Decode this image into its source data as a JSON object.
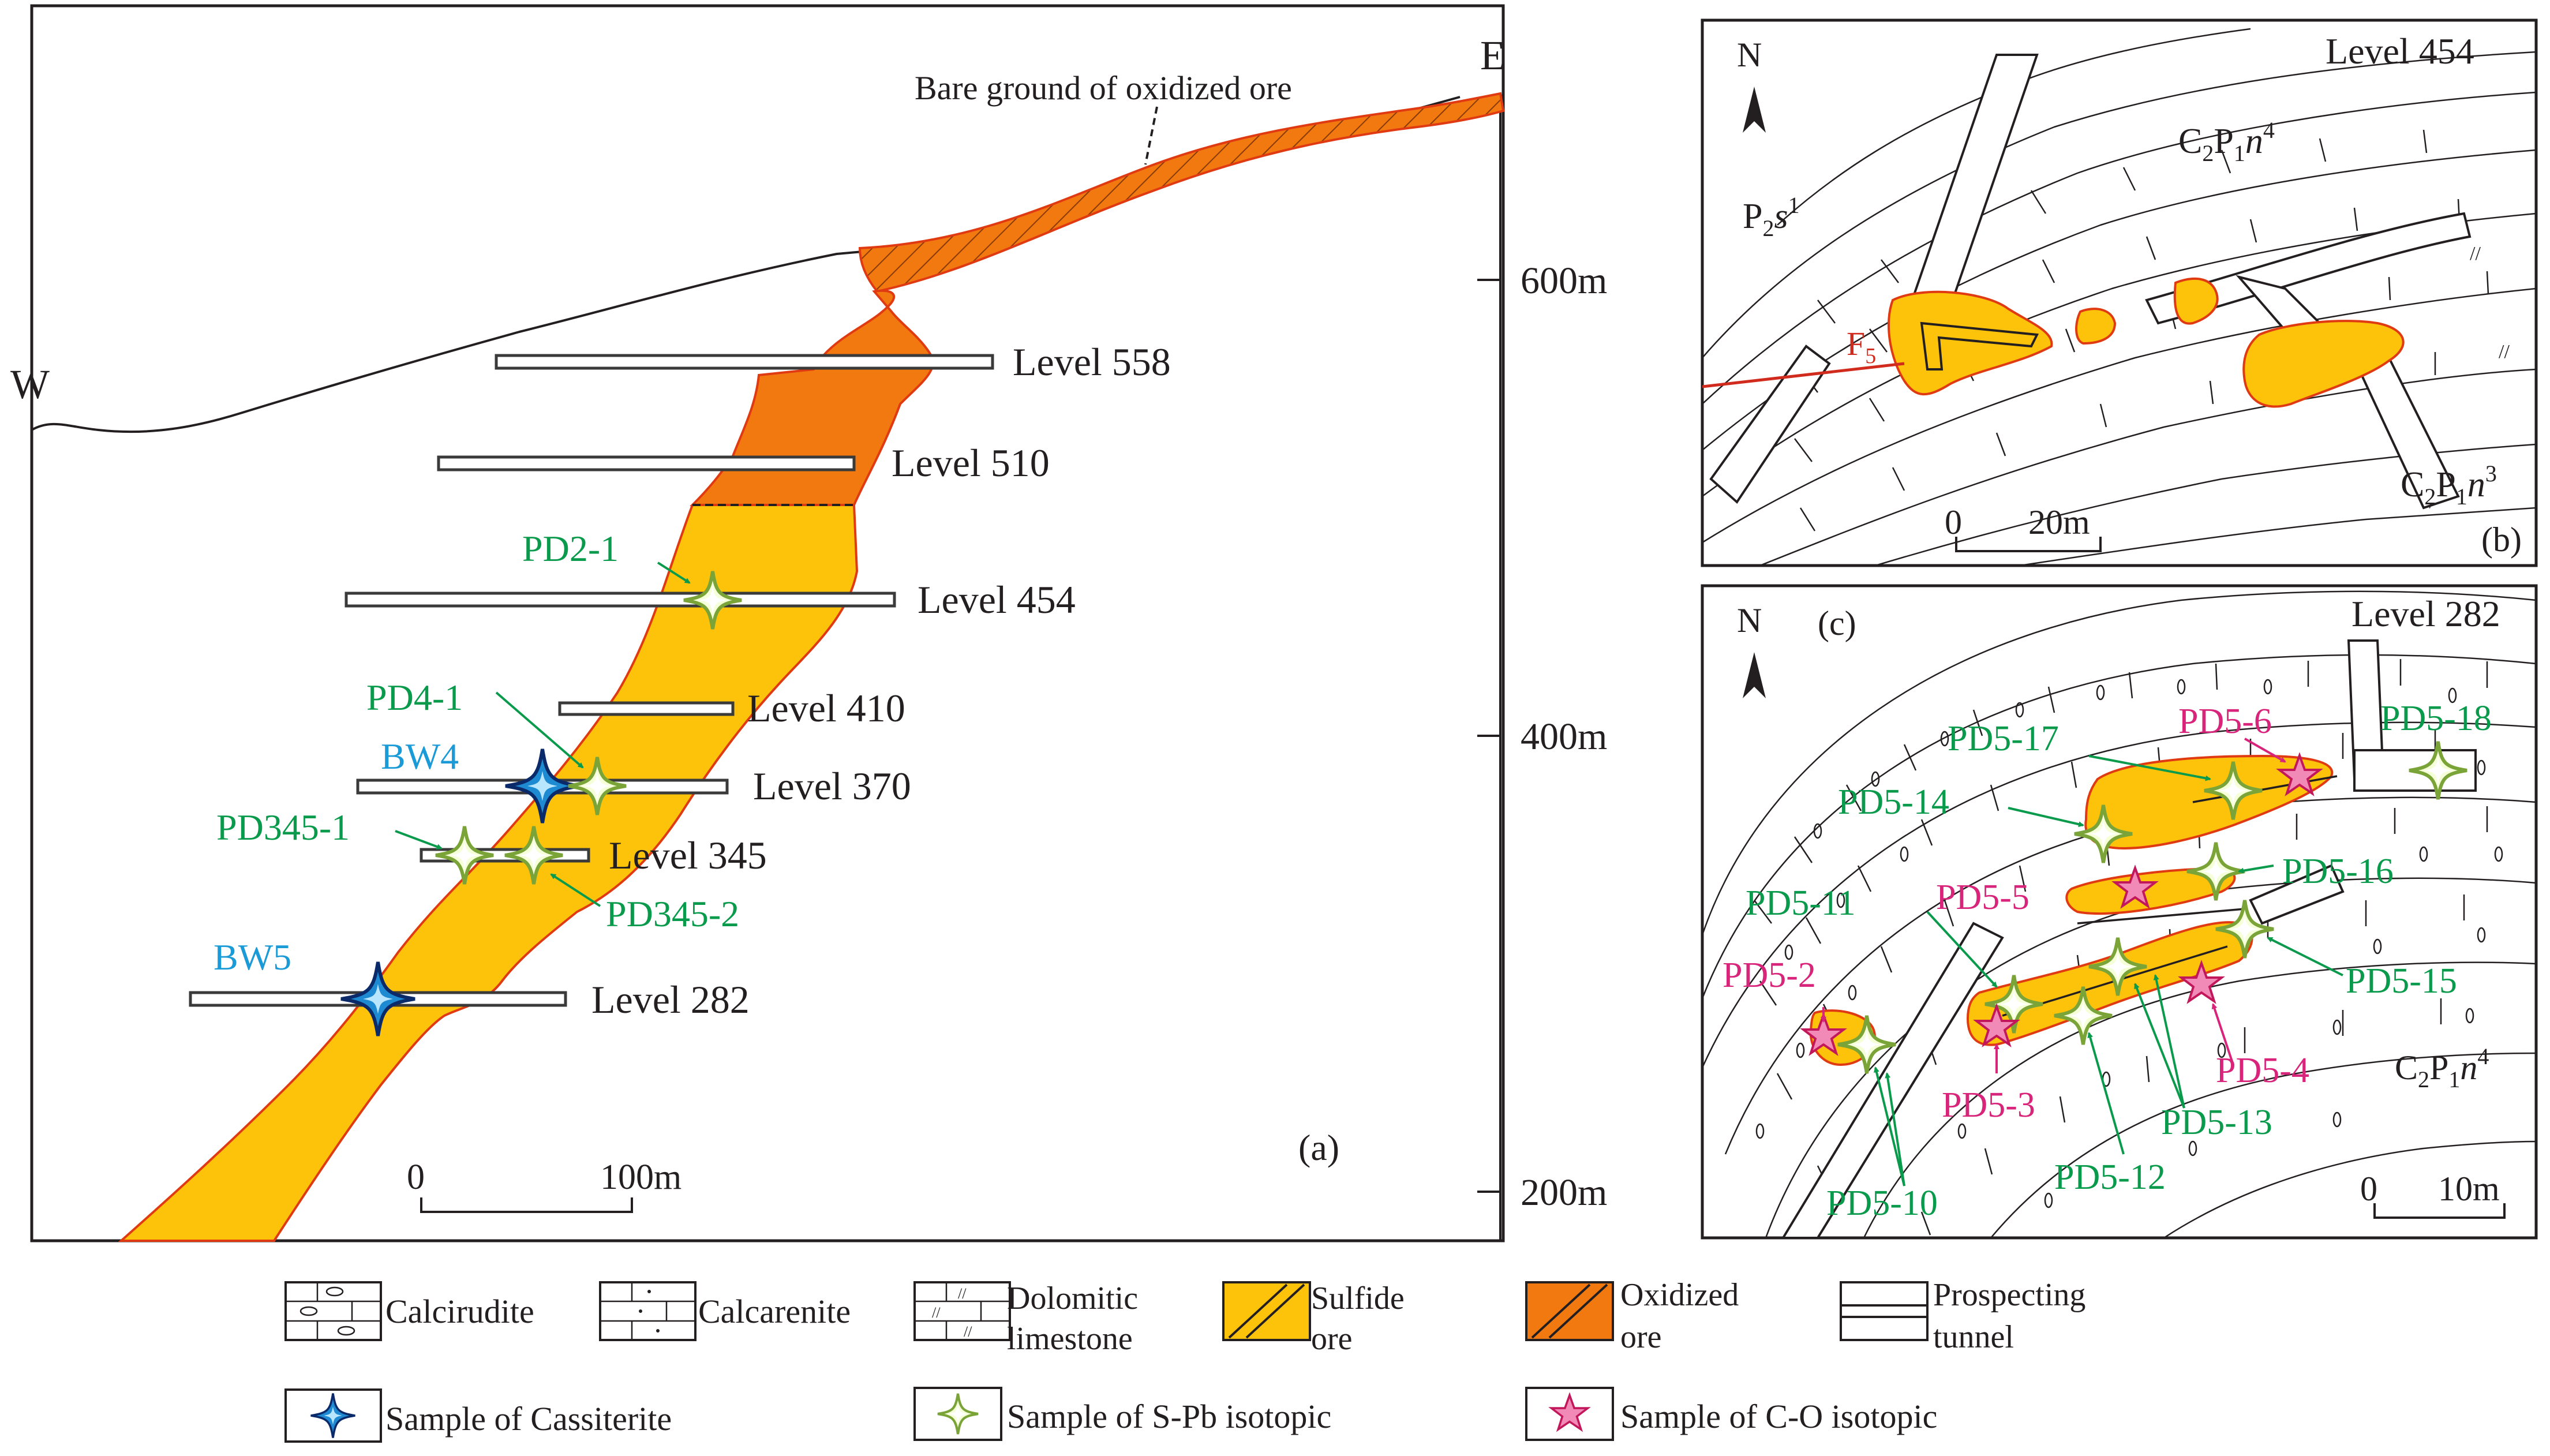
{
  "panel_a": {
    "label": "(a)",
    "west": "W",
    "east": "E",
    "bare_ground": "Bare  ground of oxidized ore",
    "elevations": [
      "600m",
      "400m",
      "200m"
    ],
    "levels": [
      "Level 558",
      "Level 510",
      "Level 454",
      "Level 410",
      "Level 370",
      "Level 345",
      "Level 282"
    ],
    "samples_green": [
      "PD2-1",
      "PD4-1",
      "PD345-1",
      "PD345-2"
    ],
    "samples_blue": [
      "BW4",
      "BW5"
    ],
    "scale": {
      "zero": "0",
      "length": "100m"
    }
  },
  "panel_b": {
    "label": "(b)",
    "north": "N",
    "title": "Level 454",
    "units": {
      "p2s1": {
        "base": "P",
        "sub": "2",
        "letter": "s",
        "sup": "1"
      },
      "c2p1n4": {
        "c": "C",
        "c_sub": "2",
        "p": "P",
        "p_sub": "1",
        "letter": "n",
        "sup": "4"
      },
      "c2p1n3": {
        "c": "C",
        "c_sub": "2",
        "p": "P",
        "p_sub": "1",
        "letter": "n",
        "sup": "3"
      }
    },
    "fault": {
      "base": "F",
      "sub": "5"
    },
    "scale": {
      "zero": "0",
      "length": "20m"
    }
  },
  "panel_c": {
    "label": "(c)",
    "north": "N",
    "title": "Level 282",
    "unit": {
      "c": "C",
      "c_sub": "2",
      "p": "P",
      "p_sub": "1",
      "letter": "n",
      "sup": "4"
    },
    "samples_green": [
      "PD5-18",
      "PD5-17",
      "PD5-14",
      "PD5-16",
      "PD5-11",
      "PD5-15",
      "PD5-13",
      "PD5-12",
      "PD5-10"
    ],
    "samples_pink": [
      "PD5-6",
      "PD5-5",
      "PD5-2",
      "PD5-4",
      "PD5-3"
    ],
    "scale": {
      "zero": "0",
      "length": "10m"
    }
  },
  "legend": {
    "calcirudite": "Calcirudite",
    "calcarenite": "Calcarenite",
    "dolomitic_1": "Dolomitic",
    "dolomitic_2": "limestone",
    "sulfide_1": "Sulfide",
    "sulfide_2": "ore",
    "oxidized_1": "Oxidized",
    "oxidized_2": "ore",
    "tunnel_1": "Prospecting",
    "tunnel_2": "tunnel",
    "cassiterite": "Sample of Cassiterite",
    "spb": "Sample of S-Pb isotopic",
    "co": "Sample of C-O isotopic"
  },
  "colors": {
    "sulfide": "#fdc30a",
    "oxidized": "#f2790f",
    "ore_outline": "#e03a12",
    "green_label": "#0a9a4c",
    "pink_label": "#d8247a",
    "blue_label": "#1a9ad6",
    "fault": "#d12b1e"
  }
}
